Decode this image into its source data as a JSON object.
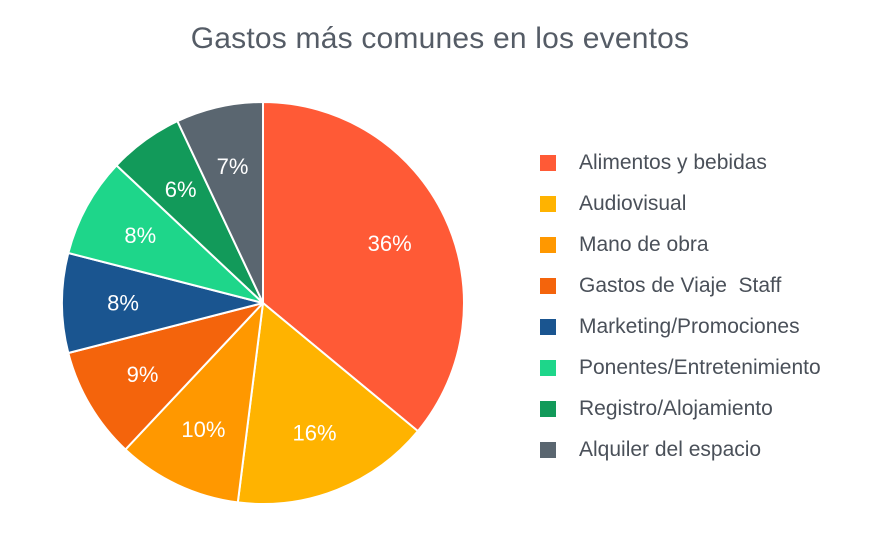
{
  "chart_data": {
    "type": "pie",
    "title": "Gastos más comunes en los eventos",
    "legend_position": "right",
    "slices": [
      {
        "label": "Alimentos y bebidas",
        "value": 36,
        "value_label": "36%",
        "color": "#ff5a36"
      },
      {
        "label": "Audiovisual",
        "value": 16,
        "value_label": "16%",
        "color": "#ffb300"
      },
      {
        "label": "Mano de obra",
        "value": 10,
        "value_label": "10%",
        "color": "#ff9800"
      },
      {
        "label": "Gastos de Viaje  Staff",
        "value": 9,
        "value_label": "9%",
        "color": "#f4640c"
      },
      {
        "label": "Marketing/Promociones",
        "value": 8,
        "value_label": "8%",
        "color": "#1a5590"
      },
      {
        "label": "Ponentes/Entretenimiento",
        "value": 8,
        "value_label": "8%",
        "color": "#1ed68a"
      },
      {
        "label": "Registro/Alojamiento",
        "value": 6,
        "value_label": "6%",
        "color": "#129a5a"
      },
      {
        "label": "Alquiler del espacio",
        "value": 7,
        "value_label": "7%",
        "color": "#5a6670"
      }
    ]
  }
}
